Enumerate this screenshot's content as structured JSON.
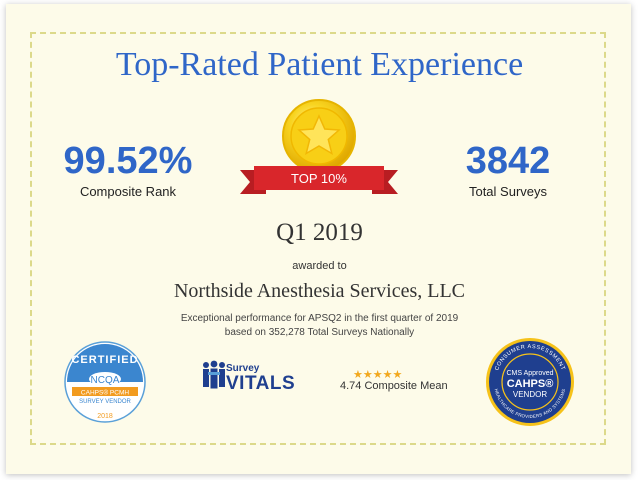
{
  "title": "Top-Rated Patient Experience",
  "left_stat": {
    "value": "99.52%",
    "label": "Composite Rank"
  },
  "right_stat": {
    "value": "3842",
    "label": "Total Surveys"
  },
  "ribbon": "TOP 10%",
  "quarter": "Q1 2019",
  "awarded_to": "awarded to",
  "organization": "Northside Anesthesia Services, LLC",
  "description": {
    "line1": "Exceptional performance for APSQ2 in the first quarter of 2019",
    "line2": "based on 352,278 Total Surveys Nationally"
  },
  "ncqa_badge": {
    "top": "CERTIFIED",
    "name": "NCQA",
    "line1": "CAHPS® PCMH",
    "line2": "SURVEY VENDOR",
    "year": "2018"
  },
  "survey_vitals": {
    "line1": "Survey",
    "line2": "VITALS"
  },
  "rating": {
    "stars": "★★★★★",
    "text": "4.74 Composite Mean"
  },
  "cahps_badge": {
    "ring_top": "CONSUMER ASSESSMENT",
    "ring_bottom": "HEALTHCARE PROVIDERS AND SYSTEMS",
    "line1": "CMS Approved",
    "line2": "CAHPS®",
    "line3": "VENDOR"
  },
  "colors": {
    "blue": "#2f66c8",
    "gold": "#f4c20d",
    "red": "#d9262b",
    "navy": "#1f3f8f"
  }
}
